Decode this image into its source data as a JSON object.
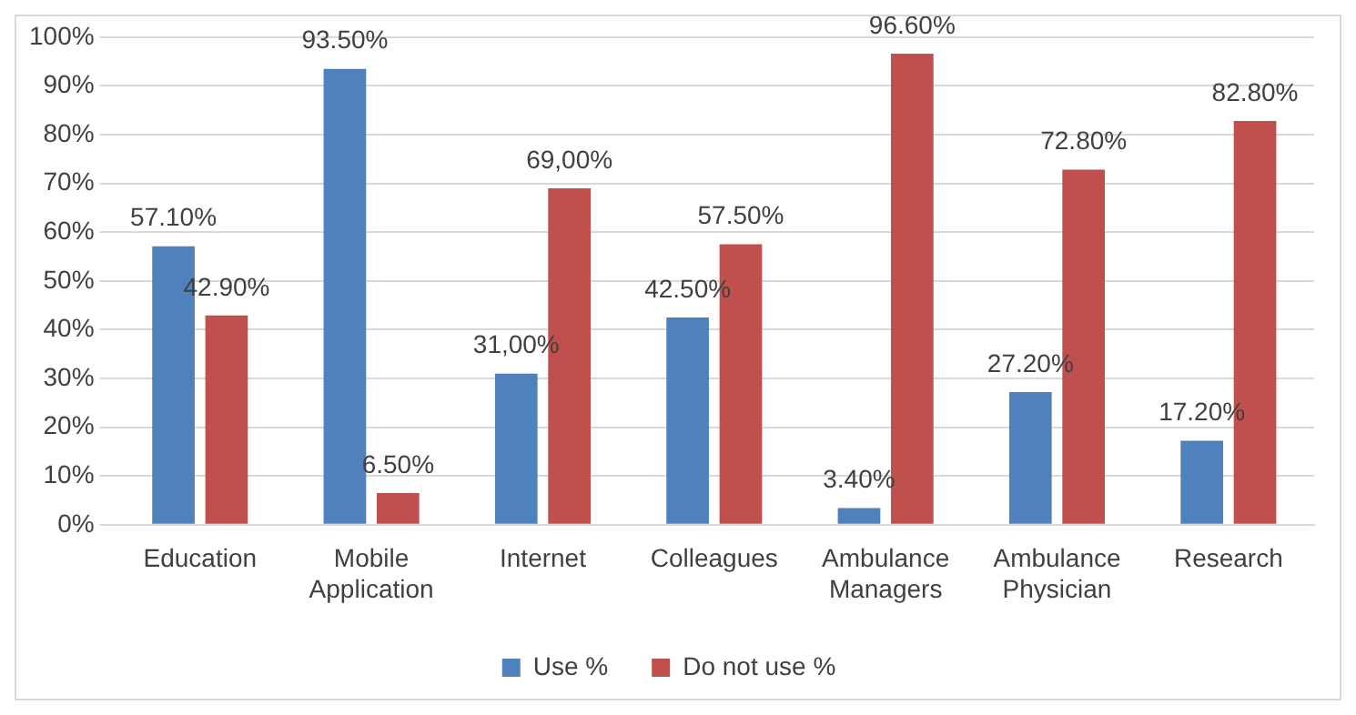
{
  "chart_data": {
    "type": "bar",
    "categories": [
      "Education",
      "Mobile Application",
      "Internet",
      "Colleagues",
      "Ambulance Managers",
      "Ambulance Physician",
      "Research"
    ],
    "series": [
      {
        "name": "Use %",
        "color": "#4f81bd",
        "values": [
          57.1,
          93.5,
          31.0,
          42.5,
          3.4,
          27.2,
          17.2
        ],
        "value_labels": [
          "57.10%",
          "93.50%",
          "31,00%",
          "42.50%",
          "3.40%",
          "27.20%",
          "17.20%"
        ]
      },
      {
        "name": "Do not use %",
        "color": "#c0504d",
        "values": [
          42.9,
          6.5,
          69.0,
          57.5,
          96.6,
          72.8,
          82.8
        ],
        "value_labels": [
          "42.90%",
          "6.50%",
          "69,00%",
          "57.50%",
          "96.60%",
          "72.80%",
          "82.80%"
        ]
      }
    ],
    "ylim": [
      0,
      100
    ],
    "yticks": [
      {
        "value": 0,
        "label": "0%"
      },
      {
        "value": 10,
        "label": "10%"
      },
      {
        "value": 20,
        "label": "20%"
      },
      {
        "value": 30,
        "label": "30%"
      },
      {
        "value": 40,
        "label": "40%"
      },
      {
        "value": 50,
        "label": "50%"
      },
      {
        "value": 60,
        "label": "60%"
      },
      {
        "value": 70,
        "label": "70%"
      },
      {
        "value": 80,
        "label": "80%"
      },
      {
        "value": 90,
        "label": "90%"
      },
      {
        "value": 100,
        "label": "100%"
      }
    ],
    "grid": "y",
    "legend": "bottom"
  }
}
